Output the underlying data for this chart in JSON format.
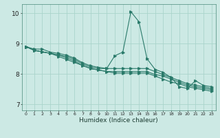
{
  "title": "",
  "xlabel": "Humidex (Indice chaleur)",
  "ylabel": "",
  "background_color": "#cce9e4",
  "grid_color": "#aad4cc",
  "line_color": "#2a7a6a",
  "xlim": [
    -0.5,
    23.5
  ],
  "ylim": [
    6.8,
    10.3
  ],
  "xticks": [
    0,
    1,
    2,
    3,
    4,
    5,
    6,
    7,
    8,
    9,
    10,
    11,
    12,
    13,
    14,
    15,
    16,
    17,
    18,
    19,
    20,
    21,
    22,
    23
  ],
  "yticks": [
    7,
    8,
    9,
    10
  ],
  "series": [
    [
      8.9,
      8.82,
      8.82,
      8.72,
      8.68,
      8.62,
      8.52,
      8.37,
      8.27,
      8.22,
      8.18,
      8.6,
      8.72,
      10.05,
      9.72,
      8.5,
      8.15,
      8.05,
      7.88,
      7.58,
      7.52,
      7.78,
      7.62,
      7.58
    ],
    [
      8.9,
      8.78,
      8.73,
      8.68,
      8.63,
      8.58,
      8.48,
      8.33,
      8.23,
      8.18,
      8.18,
      8.18,
      8.18,
      8.18,
      8.18,
      8.18,
      8.08,
      7.98,
      7.88,
      7.78,
      7.68,
      7.63,
      7.58,
      7.52
    ],
    [
      8.9,
      8.78,
      8.73,
      8.68,
      8.63,
      8.53,
      8.43,
      8.28,
      8.18,
      8.13,
      8.08,
      8.08,
      8.08,
      8.08,
      8.08,
      8.08,
      7.98,
      7.93,
      7.83,
      7.73,
      7.63,
      7.58,
      7.53,
      7.48
    ],
    [
      8.9,
      8.78,
      8.73,
      8.68,
      8.58,
      8.48,
      8.38,
      8.28,
      8.18,
      8.13,
      8.08,
      8.03,
      8.03,
      8.03,
      8.03,
      8.03,
      7.93,
      7.83,
      7.73,
      7.68,
      7.58,
      7.53,
      7.48,
      7.43
    ]
  ]
}
